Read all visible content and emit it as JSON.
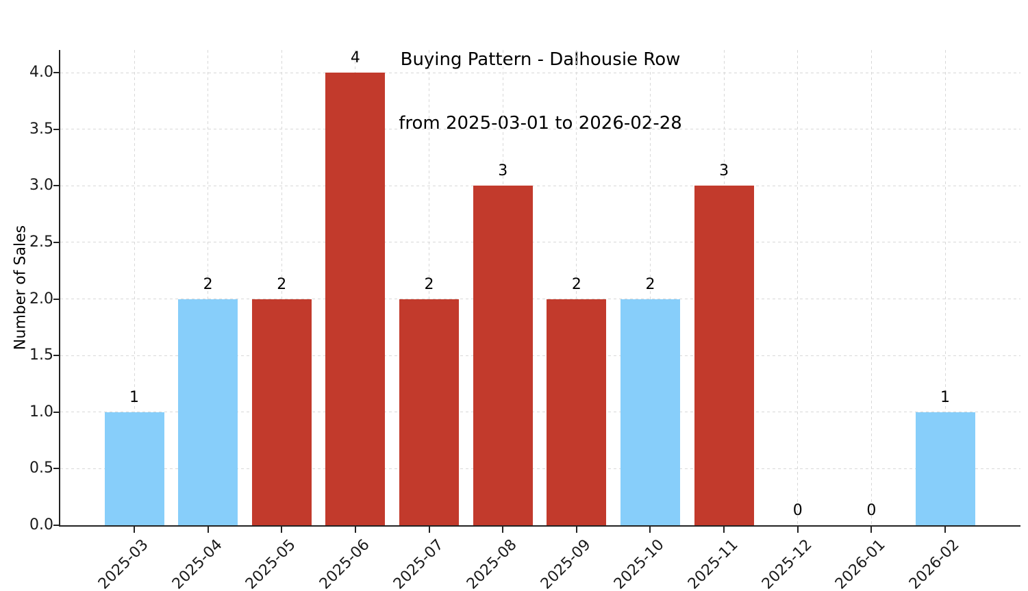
{
  "figure": {
    "title_line1": "Buying Pattern - Dalhousie Row",
    "title_line2": "from 2025-03-01 to 2026-02-28"
  },
  "chart_data": {
    "type": "bar",
    "title": "Buying Pattern - Dalhousie Row\nfrom 2025-03-01 to 2026-02-28",
    "xlabel": "",
    "ylabel": "Number of Sales",
    "categories": [
      "2025-03",
      "2025-04",
      "2025-05",
      "2025-06",
      "2025-07",
      "2025-08",
      "2025-09",
      "2025-10",
      "2025-11",
      "2025-12",
      "2026-01",
      "2026-02"
    ],
    "values": [
      1,
      2,
      2,
      4,
      2,
      3,
      2,
      2,
      3,
      0,
      0,
      1
    ],
    "bar_colors": [
      "#87CEFA",
      "#87CEFA",
      "#C23A2C",
      "#C23A2C",
      "#C23A2C",
      "#C23A2C",
      "#C23A2C",
      "#87CEFA",
      "#C23A2C",
      null,
      null,
      "#87CEFA"
    ],
    "y_ticks": [
      "0.0",
      "0.5",
      "1.0",
      "1.5",
      "2.0",
      "2.5",
      "3.0",
      "3.5",
      "4.0"
    ],
    "ylim": [
      0,
      4.2
    ],
    "grid": true,
    "grid_style": "dashed",
    "legend": "none",
    "colors": {
      "bar_blue": "#87CEFA",
      "bar_red": "#C23A2C",
      "grid": "#d8d8d8",
      "axis": "#222222",
      "text": "#000000"
    }
  }
}
